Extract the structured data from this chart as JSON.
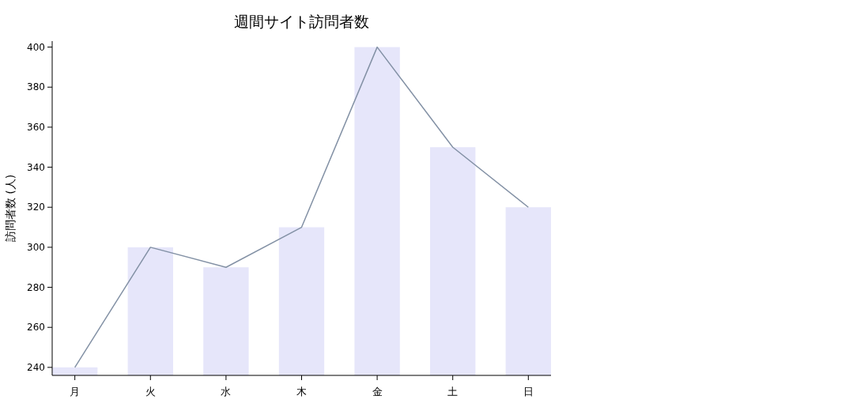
{
  "chart_data": {
    "type": "bar",
    "title": "週間サイト訪問者数",
    "ylabel": "訪問者数 (人)",
    "categories": [
      "月",
      "火",
      "水",
      "木",
      "金",
      "土",
      "日"
    ],
    "ylim": [
      236,
      403
    ],
    "yticks": [
      240,
      260,
      280,
      300,
      320,
      340,
      360,
      380,
      400
    ],
    "series": [
      {
        "color": "#e6e6fa",
        "values": [
          240,
          300,
          290,
          310,
          400,
          350,
          320
        ]
      },
      {
        "type": "line",
        "color": "#8391a5",
        "values": [
          240,
          300,
          290,
          310,
          400,
          350,
          320
        ]
      }
    ]
  }
}
